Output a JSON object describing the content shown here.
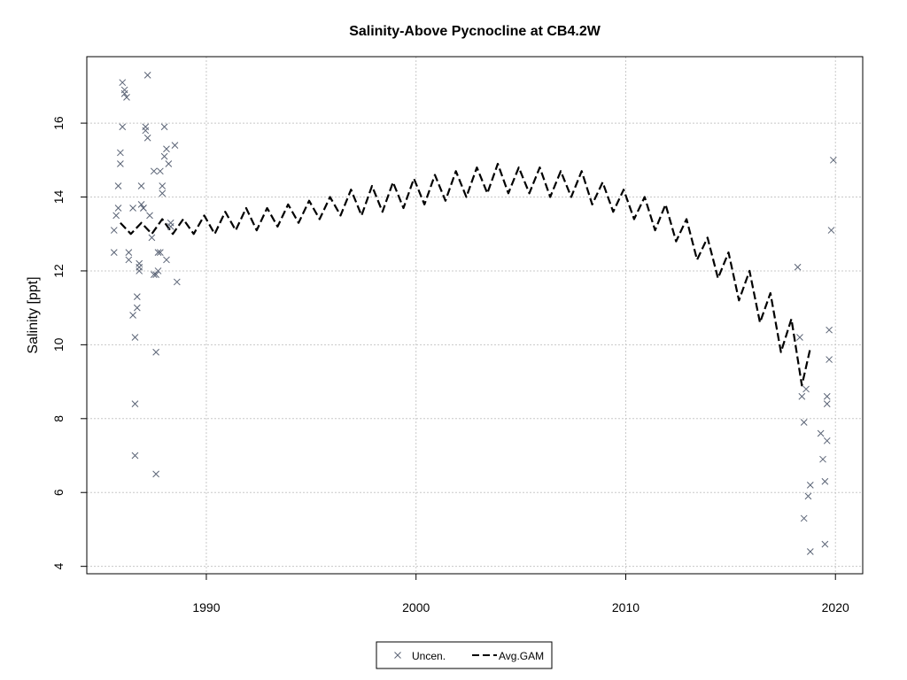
{
  "chart_data": {
    "type": "scatter",
    "title": "Salinity-Above Pycnocline at CB4.2W",
    "xlabel": "",
    "ylabel": "Salinity [ppt]",
    "xlim": [
      1984.3,
      2021.3
    ],
    "ylim": [
      3.8,
      17.8
    ],
    "xticks": [
      1990,
      2000,
      2010,
      2020
    ],
    "yticks": [
      4,
      6,
      8,
      10,
      12,
      14,
      16
    ],
    "grid": true,
    "legend_position": "bottom-center",
    "legend": [
      {
        "label": "Uncen.",
        "marker": "x",
        "color": "#5b6476"
      },
      {
        "label": "Avg.GAM",
        "marker": "dashed-line",
        "color": "#000000"
      }
    ],
    "series": [
      {
        "name": "Uncen.",
        "kind": "points",
        "color": "#5b6476",
        "points": [
          [
            1985.6,
            13.1
          ],
          [
            1985.6,
            12.5
          ],
          [
            1985.7,
            13.5
          ],
          [
            1985.8,
            13.7
          ],
          [
            1985.8,
            14.3
          ],
          [
            1985.9,
            15.2
          ],
          [
            1985.9,
            14.9
          ],
          [
            1986.0,
            15.9
          ],
          [
            1986.0,
            17.1
          ],
          [
            1986.1,
            16.9
          ],
          [
            1986.1,
            16.8
          ],
          [
            1986.2,
            16.7
          ],
          [
            1986.3,
            12.5
          ],
          [
            1986.3,
            12.3
          ],
          [
            1986.5,
            10.8
          ],
          [
            1986.5,
            13.7
          ],
          [
            1986.6,
            7.0
          ],
          [
            1986.6,
            8.4
          ],
          [
            1986.6,
            10.2
          ],
          [
            1986.7,
            11.0
          ],
          [
            1986.7,
            11.3
          ],
          [
            1986.8,
            12.0
          ],
          [
            1986.8,
            12.1
          ],
          [
            1986.8,
            12.2
          ],
          [
            1986.9,
            13.8
          ],
          [
            1986.9,
            14.3
          ],
          [
            1987.0,
            13.7
          ],
          [
            1987.0,
            13.7
          ],
          [
            1987.1,
            15.9
          ],
          [
            1987.1,
            15.8
          ],
          [
            1987.2,
            15.6
          ],
          [
            1987.2,
            17.3
          ],
          [
            1987.3,
            13.5
          ],
          [
            1987.4,
            12.9
          ],
          [
            1987.5,
            11.9
          ],
          [
            1987.5,
            14.7
          ],
          [
            1987.6,
            6.5
          ],
          [
            1987.6,
            9.8
          ],
          [
            1987.6,
            11.9
          ],
          [
            1987.7,
            12.0
          ],
          [
            1987.7,
            12.5
          ],
          [
            1987.8,
            12.5
          ],
          [
            1987.8,
            14.7
          ],
          [
            1987.9,
            14.3
          ],
          [
            1987.9,
            14.1
          ],
          [
            1988.0,
            15.1
          ],
          [
            1988.0,
            15.9
          ],
          [
            1988.1,
            12.3
          ],
          [
            1988.1,
            15.3
          ],
          [
            1988.2,
            14.9
          ],
          [
            1988.3,
            13.3
          ],
          [
            1988.3,
            13.2
          ],
          [
            1988.5,
            15.4
          ],
          [
            1988.6,
            11.7
          ],
          [
            2018.2,
            12.1
          ],
          [
            2018.3,
            10.2
          ],
          [
            2018.4,
            8.6
          ],
          [
            2018.5,
            5.3
          ],
          [
            2018.5,
            7.9
          ],
          [
            2018.6,
            8.8
          ],
          [
            2018.7,
            5.9
          ],
          [
            2018.8,
            4.4
          ],
          [
            2018.8,
            6.2
          ],
          [
            2019.3,
            7.6
          ],
          [
            2019.4,
            6.9
          ],
          [
            2019.5,
            4.6
          ],
          [
            2019.5,
            6.3
          ],
          [
            2019.6,
            7.4
          ],
          [
            2019.6,
            8.6
          ],
          [
            2019.6,
            8.4
          ],
          [
            2019.7,
            10.4
          ],
          [
            2019.7,
            9.6
          ],
          [
            2019.8,
            13.1
          ],
          [
            2019.9,
            15.0
          ]
        ]
      },
      {
        "name": "Avg.GAM",
        "kind": "line",
        "color": "#000000",
        "points": [
          [
            1985.9,
            13.3
          ],
          [
            1986.4,
            13.0
          ],
          [
            1986.9,
            13.3
          ],
          [
            1987.4,
            13.0
          ],
          [
            1987.9,
            13.4
          ],
          [
            1988.4,
            13.0
          ],
          [
            1988.9,
            13.4
          ],
          [
            1989.4,
            13.0
          ],
          [
            1989.9,
            13.5
          ],
          [
            1990.4,
            13.0
          ],
          [
            1990.9,
            13.6
          ],
          [
            1991.4,
            13.1
          ],
          [
            1991.9,
            13.7
          ],
          [
            1992.4,
            13.1
          ],
          [
            1992.9,
            13.7
          ],
          [
            1993.4,
            13.2
          ],
          [
            1993.9,
            13.8
          ],
          [
            1994.4,
            13.3
          ],
          [
            1994.9,
            13.9
          ],
          [
            1995.4,
            13.4
          ],
          [
            1995.9,
            14.0
          ],
          [
            1996.4,
            13.5
          ],
          [
            1996.9,
            14.2
          ],
          [
            1997.4,
            13.5
          ],
          [
            1997.9,
            14.3
          ],
          [
            1998.4,
            13.6
          ],
          [
            1998.9,
            14.4
          ],
          [
            1999.4,
            13.7
          ],
          [
            1999.9,
            14.5
          ],
          [
            2000.4,
            13.8
          ],
          [
            2000.9,
            14.6
          ],
          [
            2001.4,
            13.9
          ],
          [
            2001.9,
            14.7
          ],
          [
            2002.4,
            14.0
          ],
          [
            2002.9,
            14.8
          ],
          [
            2003.4,
            14.1
          ],
          [
            2003.9,
            14.9
          ],
          [
            2004.4,
            14.1
          ],
          [
            2004.9,
            14.8
          ],
          [
            2005.4,
            14.1
          ],
          [
            2005.9,
            14.8
          ],
          [
            2006.4,
            14.0
          ],
          [
            2006.9,
            14.7
          ],
          [
            2007.4,
            14.0
          ],
          [
            2007.9,
            14.7
          ],
          [
            2008.4,
            13.8
          ],
          [
            2008.9,
            14.4
          ],
          [
            2009.4,
            13.6
          ],
          [
            2009.9,
            14.2
          ],
          [
            2010.4,
            13.4
          ],
          [
            2010.9,
            14.0
          ],
          [
            2011.4,
            13.1
          ],
          [
            2011.9,
            13.8
          ],
          [
            2012.4,
            12.8
          ],
          [
            2012.9,
            13.4
          ],
          [
            2013.4,
            12.3
          ],
          [
            2013.9,
            12.9
          ],
          [
            2014.4,
            11.8
          ],
          [
            2014.9,
            12.5
          ],
          [
            2015.4,
            11.2
          ],
          [
            2015.9,
            12.0
          ],
          [
            2016.4,
            10.6
          ],
          [
            2016.9,
            11.4
          ],
          [
            2017.4,
            9.8
          ],
          [
            2017.9,
            10.7
          ],
          [
            2018.4,
            8.9
          ],
          [
            2018.8,
            9.9
          ]
        ]
      }
    ]
  }
}
